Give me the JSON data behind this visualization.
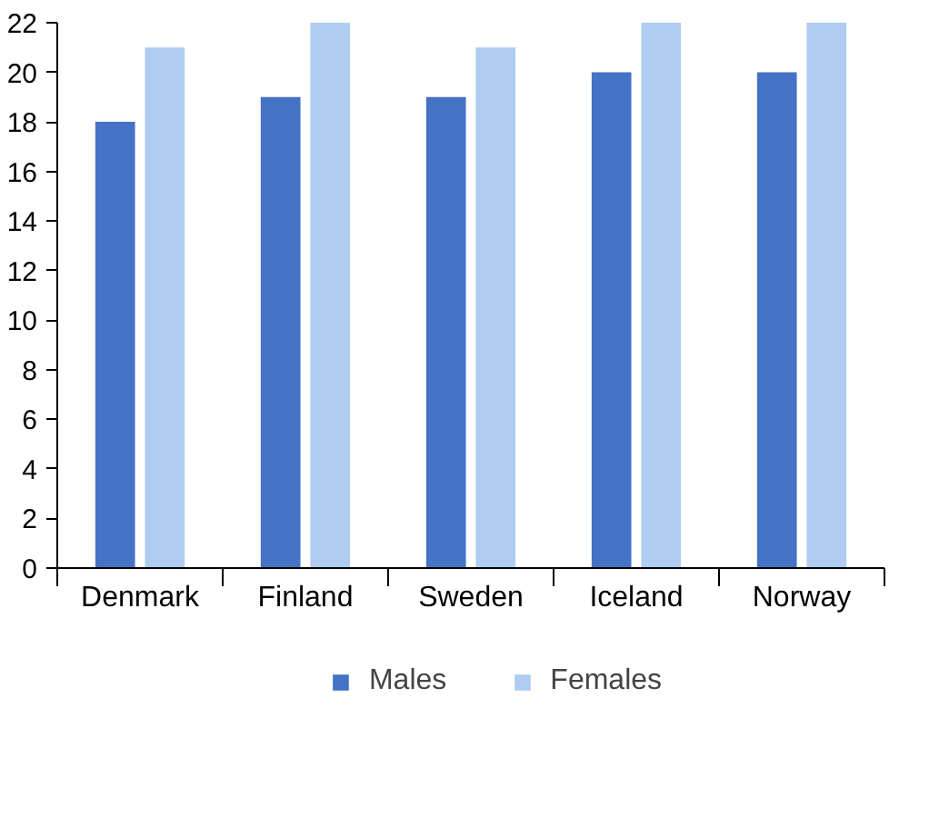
{
  "chart_data": {
    "type": "bar",
    "categories": [
      "Denmark",
      "Finland",
      "Sweden",
      "Iceland",
      "Norway"
    ],
    "series": [
      {
        "name": "Males",
        "color": "#4472c4",
        "values": [
          18,
          19,
          19,
          20,
          20
        ]
      },
      {
        "name": "Females",
        "color": "#aecdf0",
        "values": [
          21,
          22,
          21,
          22,
          22
        ]
      }
    ],
    "ylim": [
      0,
      22
    ],
    "yticks": [
      0,
      2,
      4,
      6,
      8,
      10,
      12,
      14,
      16,
      18,
      20,
      22
    ],
    "grid": false,
    "legend": "bottom"
  }
}
